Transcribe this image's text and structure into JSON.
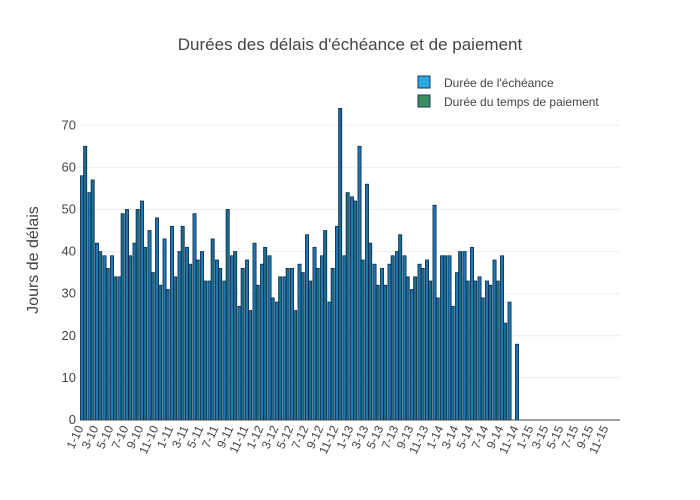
{
  "chart_data": {
    "type": "bar",
    "title": "Durées des délais d'échéance et de paiement",
    "ylabel": "Jours de délais",
    "ylim": [
      0,
      76
    ],
    "yticks": [
      0,
      10,
      20,
      30,
      40,
      50,
      60,
      70
    ],
    "grid": true,
    "legend_position": "top-right",
    "categories": [
      "1-10",
      "2-10",
      "3-10",
      "4-10",
      "5-10",
      "6-10",
      "7-10",
      "8-10",
      "9-10",
      "10-10",
      "11-10",
      "12-10",
      "1-11",
      "2-11",
      "3-11",
      "4-11",
      "5-11",
      "6-11",
      "7-11",
      "8-11",
      "9-11",
      "10-11",
      "11-11",
      "12-11",
      "1-12",
      "2-12",
      "3-12",
      "4-12",
      "5-12",
      "6-12",
      "7-12",
      "8-12",
      "9-12",
      "10-12",
      "11-12",
      "12-12",
      "1-13",
      "2-13",
      "3-13",
      "4-13",
      "5-13",
      "6-13",
      "7-13",
      "8-13",
      "9-13",
      "10-13",
      "11-13",
      "12-13",
      "1-14",
      "2-14",
      "3-14",
      "4-14",
      "5-14",
      "6-14",
      "7-14",
      "8-14",
      "9-14",
      "10-14",
      "11-14",
      "12-14",
      "1-15",
      "2-15",
      "3-15",
      "4-15",
      "5-15",
      "6-15",
      "7-15",
      "8-15",
      "9-15",
      "10-15",
      "11-15",
      "12-15"
    ],
    "series": [
      {
        "name": "Durée de l'échéance",
        "color": "#29a9e0",
        "values": [
          58,
          54,
          42,
          39,
          39,
          34,
          50,
          42,
          52,
          45,
          48,
          43,
          46,
          40,
          41,
          49,
          40,
          33,
          38,
          33,
          39,
          27,
          38,
          42,
          37,
          39,
          28,
          34,
          36,
          37,
          44,
          41,
          39,
          28,
          46,
          39,
          53,
          65,
          56,
          37,
          36,
          37,
          40,
          39,
          31,
          37,
          38,
          51,
          39,
          39,
          35,
          40,
          41,
          34,
          33,
          38,
          39,
          28,
          18,
          0,
          0,
          0,
          0,
          0,
          0,
          0,
          0,
          0,
          0,
          0,
          0,
          0
        ],
        "values_note": ""
      },
      {
        "name": "Durée du temps de paiement",
        "color": "#2e8b57",
        "values": [
          65,
          57,
          40,
          36,
          34,
          49,
          39,
          50,
          41,
          35,
          32,
          31,
          34,
          46,
          37,
          38,
          33,
          43,
          36,
          50,
          40,
          36,
          26,
          32,
          41,
          29,
          34,
          36,
          26,
          35,
          33,
          36,
          45,
          36,
          74,
          54,
          52,
          38,
          42,
          32,
          32,
          39,
          44,
          34,
          34,
          36,
          33,
          29,
          39,
          27,
          40,
          33,
          33,
          29,
          32,
          33,
          23,
          0,
          0,
          0,
          0,
          0,
          0,
          0,
          0,
          0,
          0,
          0,
          0,
          0,
          0,
          0
        ]
      }
    ]
  },
  "legend": {
    "items": [
      {
        "label": "Durée de l'échéance",
        "color": "#29a9e0"
      },
      {
        "label": "Durée du temps de paiement",
        "color": "#3d8b5f"
      }
    ]
  }
}
